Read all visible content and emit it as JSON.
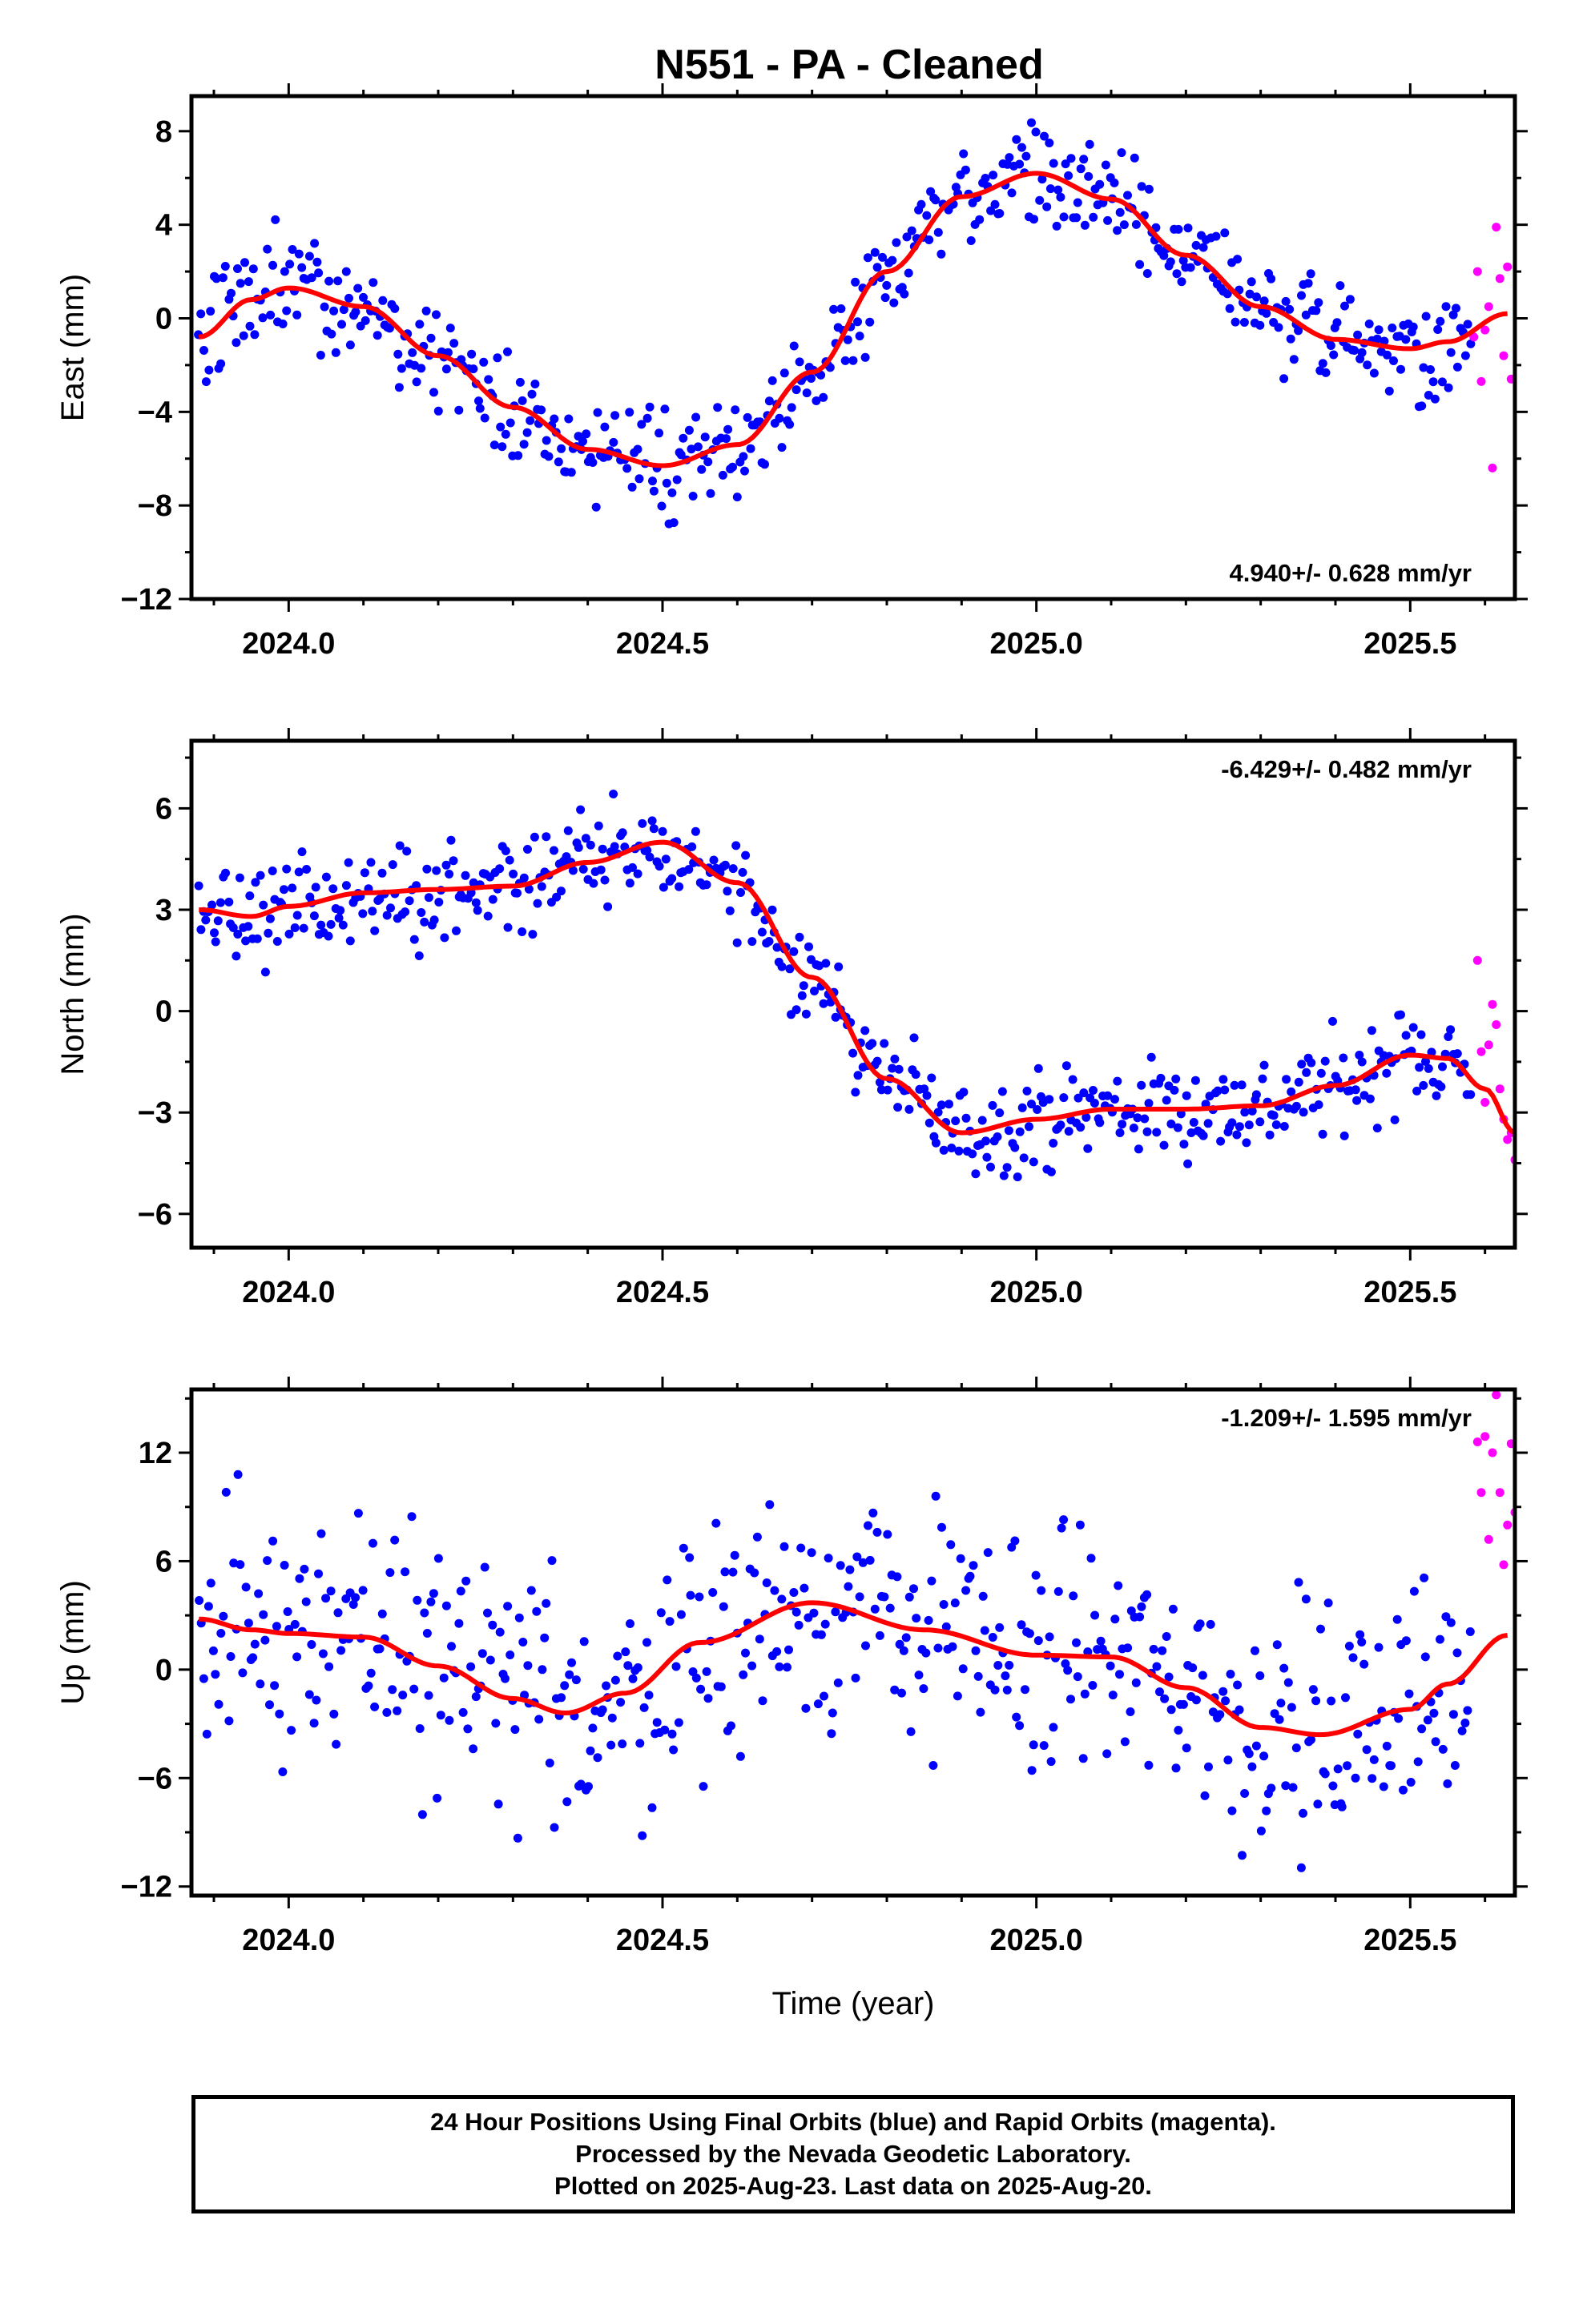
{
  "title": "N551  - PA - Cleaned",
  "footer": {
    "line1": "24 Hour Positions Using Final Orbits (blue) and Rapid Orbits (magenta).",
    "line2": "Processed by the Nevada Geodetic Laboratory.",
    "line3": "Plotted on 2025-Aug-23. Last data on 2025-Aug-20."
  },
  "colors": {
    "final": "#0000ff",
    "rapid": "#ff00ff",
    "fit": "#ff0000",
    "axis": "#000000"
  },
  "chart_data": [
    {
      "type": "scatter",
      "component": "East",
      "ylabel": "East (mm)",
      "xlabel": "",
      "rate_text": "4.940+/- 0.628 mm/yr",
      "xlim": [
        2023.87,
        2025.64
      ],
      "ylim": [
        -12,
        9.5
      ],
      "xticks": [
        2024.0,
        2024.5,
        2025.0,
        2025.5
      ],
      "xtick_labels": [
        "2024.0",
        "2024.5",
        "2025.0",
        "2025.5"
      ],
      "yticks": [
        -12,
        -8,
        -4,
        0,
        4,
        8
      ],
      "ytick_labels": [
        "−12",
        "−8",
        "−4",
        "0",
        "4",
        "8"
      ],
      "fit": {
        "x": [
          2023.88,
          2023.95,
          2024.0,
          2024.1,
          2024.2,
          2024.3,
          2024.4,
          2024.5,
          2024.6,
          2024.7,
          2024.8,
          2024.9,
          2025.0,
          2025.1,
          2025.2,
          2025.3,
          2025.4,
          2025.5,
          2025.55,
          2025.63
        ],
        "y": [
          -0.8,
          0.8,
          1.3,
          0.5,
          -1.6,
          -3.8,
          -5.6,
          -6.3,
          -5.4,
          -2.3,
          2.0,
          5.2,
          6.2,
          5.1,
          2.7,
          0.5,
          -0.9,
          -1.3,
          -1.0,
          0.2
        ]
      },
      "rapid": {
        "x": [
          2025.585,
          2025.59,
          2025.595,
          2025.6,
          2025.605,
          2025.61,
          2025.615,
          2025.62,
          2025.625,
          2025.63,
          2025.635
        ],
        "y": [
          -0.8,
          2.0,
          -2.7,
          -0.5,
          0.5,
          -6.4,
          3.9,
          1.7,
          -1.6,
          2.2,
          -2.6
        ]
      },
      "final_noise": 1.45,
      "final_count": 520
    },
    {
      "type": "scatter",
      "component": "North",
      "ylabel": "North (mm)",
      "xlabel": "",
      "rate_text": "-6.429+/- 0.482 mm/yr",
      "xlim": [
        2023.87,
        2025.64
      ],
      "ylim": [
        -7,
        8
      ],
      "xticks": [
        2024.0,
        2024.5,
        2025.0,
        2025.5
      ],
      "xtick_labels": [
        "2024.0",
        "2024.5",
        "2025.0",
        "2025.5"
      ],
      "yticks": [
        -6,
        -3,
        0,
        3,
        6
      ],
      "ytick_labels": [
        "−6",
        "−3",
        "0",
        "3",
        "6"
      ],
      "fit": {
        "x": [
          2023.88,
          2023.95,
          2024.0,
          2024.1,
          2024.2,
          2024.3,
          2024.4,
          2024.5,
          2024.6,
          2024.7,
          2024.8,
          2024.9,
          2025.0,
          2025.1,
          2025.2,
          2025.3,
          2025.4,
          2025.5,
          2025.55,
          2025.6,
          2025.64
        ],
        "y": [
          3.0,
          2.8,
          3.1,
          3.5,
          3.6,
          3.7,
          4.4,
          5.0,
          3.8,
          1.0,
          -2.0,
          -3.6,
          -3.2,
          -2.9,
          -2.9,
          -2.8,
          -2.2,
          -1.3,
          -1.4,
          -2.3,
          -3.6
        ]
      },
      "rapid": {
        "x": [
          2025.59,
          2025.595,
          2025.6,
          2025.605,
          2025.61,
          2025.615,
          2025.62,
          2025.625,
          2025.63,
          2025.635,
          2025.64
        ],
        "y": [
          1.5,
          -1.2,
          -2.7,
          -1.0,
          0.2,
          -0.4,
          -2.3,
          -3.2,
          -3.8,
          -3.6,
          -4.4
        ]
      },
      "final_noise": 0.95,
      "final_count": 520
    },
    {
      "type": "scatter",
      "component": "Up",
      "ylabel": "Up (mm)",
      "xlabel": "Time (year)",
      "rate_text": "-1.209+/- 1.595 mm/yr",
      "xlim": [
        2023.87,
        2025.64
      ],
      "ylim": [
        -12.5,
        15.5
      ],
      "xticks": [
        2024.0,
        2024.5,
        2025.0,
        2025.5
      ],
      "xtick_labels": [
        "2024.0",
        "2024.5",
        "2025.0",
        "2025.5"
      ],
      "yticks": [
        -12,
        -6,
        0,
        6,
        12
      ],
      "ytick_labels": [
        "−12",
        "−6",
        "0",
        "6",
        "12"
      ],
      "fit": {
        "x": [
          2023.88,
          2023.95,
          2024.0,
          2024.1,
          2024.2,
          2024.3,
          2024.37,
          2024.45,
          2024.55,
          2024.7,
          2024.85,
          2025.0,
          2025.1,
          2025.2,
          2025.3,
          2025.38,
          2025.5,
          2025.55,
          2025.63
        ],
        "y": [
          2.8,
          2.2,
          2.0,
          1.8,
          0.2,
          -1.6,
          -2.4,
          -1.3,
          1.5,
          3.7,
          2.2,
          0.8,
          0.7,
          -1.0,
          -3.2,
          -3.6,
          -2.2,
          -0.8,
          1.9
        ]
      },
      "rapid": {
        "x": [
          2025.59,
          2025.595,
          2025.6,
          2025.605,
          2025.61,
          2025.615,
          2025.62,
          2025.625,
          2025.63,
          2025.635,
          2025.64
        ],
        "y": [
          12.6,
          9.8,
          12.9,
          7.2,
          12.0,
          15.2,
          9.8,
          5.8,
          8.0,
          12.5,
          8.7
        ]
      },
      "final_noise": 4.4,
      "final_count": 520
    }
  ]
}
